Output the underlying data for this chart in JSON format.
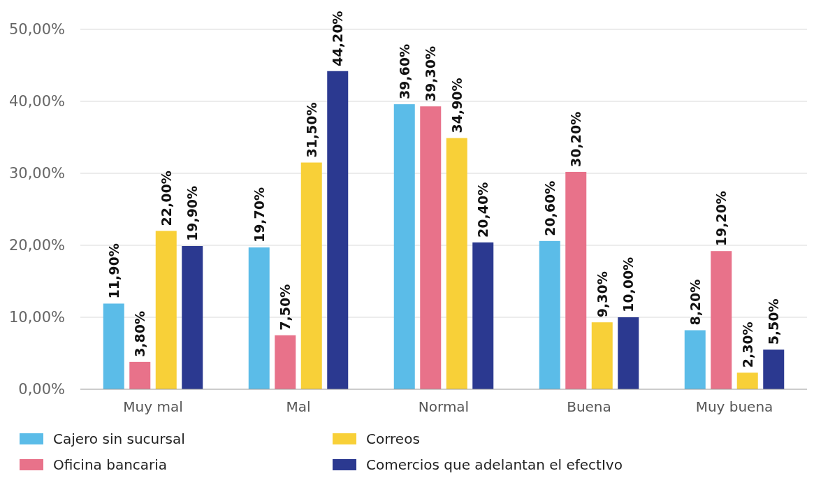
{
  "chart_data": {
    "type": "bar",
    "categories": [
      "Muy mal",
      "Mal",
      "Normal",
      "Buena",
      "Muy buena"
    ],
    "series": [
      {
        "name": "Cajero sin sucursal",
        "color": "#5bbce8",
        "values": [
          11.9,
          19.7,
          39.6,
          20.6,
          8.2
        ],
        "value_labels": [
          "11,90%",
          "19,70%",
          "39,60%",
          "20,60%",
          "8,20%"
        ]
      },
      {
        "name": "Oficina bancaria",
        "color": "#e8728a",
        "values": [
          3.8,
          7.5,
          39.3,
          30.2,
          19.2
        ],
        "value_labels": [
          "3,80%",
          "7,50%",
          "39,30%",
          "30,20%",
          "19,20%"
        ]
      },
      {
        "name": "Correos",
        "color": "#f8d038",
        "values": [
          22.0,
          31.5,
          34.9,
          9.3,
          2.3
        ],
        "value_labels": [
          "22,00%",
          "31,50%",
          "34,90%",
          "9,30%",
          "2,30%"
        ]
      },
      {
        "name": "Comercios que adelantan el efectIvo",
        "color": "#2b3990",
        "values": [
          19.9,
          44.2,
          20.4,
          10.0,
          5.5
        ],
        "value_labels": [
          "19,90%",
          "44,20%",
          "20,40%",
          "10,00%",
          "5,50%"
        ]
      }
    ],
    "ylim": [
      0,
      50
    ],
    "yticks": [
      {
        "value": 0,
        "label": "0,00%"
      },
      {
        "value": 10,
        "label": "10,00%"
      },
      {
        "value": 20,
        "label": "20,00%"
      },
      {
        "value": 30,
        "label": "30,00%"
      },
      {
        "value": 40,
        "label": "40,00%"
      },
      {
        "value": 50,
        "label": "50,00%"
      }
    ],
    "grid": "y",
    "legend": "bottom"
  }
}
